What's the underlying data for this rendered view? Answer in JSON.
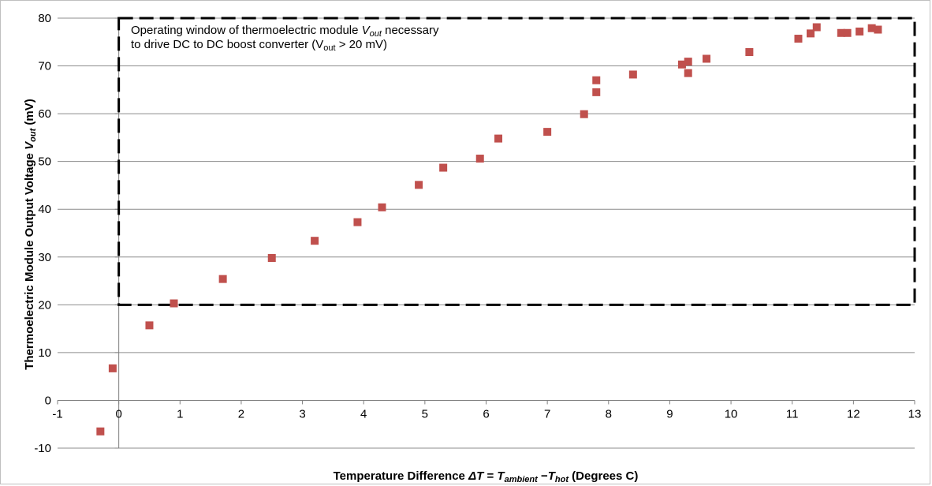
{
  "chart_data": {
    "type": "scatter",
    "title": "",
    "xlabel": "Temperature Difference ΔT = T_ambient − T_hot (Degrees C)",
    "xlabel_parts": {
      "prefix": "Temperature Difference ",
      "delta_t": "ΔT",
      "equals": " = ",
      "t1": "T",
      "sub1": "ambient",
      "minus": " −",
      "t2": "T",
      "sub2": "hot",
      "suffix": " (Degrees C)"
    },
    "ylabel": "Thermoelectric Module Output Voltage V_out (mV)",
    "ylabel_parts": {
      "prefix": "Thermoelectric Module Output Voltage ",
      "v": "V",
      "sub": "out",
      "suffix": " (mV)"
    },
    "xlim": [
      -1,
      13
    ],
    "ylim": [
      -10,
      80
    ],
    "x_ticks": [
      "-1",
      "0",
      "1",
      "2",
      "3",
      "4",
      "5",
      "6",
      "7",
      "8",
      "9",
      "10",
      "11",
      "12",
      "13"
    ],
    "y_ticks": [
      "-10",
      "0",
      "10",
      "20",
      "30",
      "40",
      "50",
      "60",
      "70",
      "80"
    ],
    "grid": "horizontal",
    "marker_color": "#c0504d",
    "points": [
      {
        "x": -0.3,
        "y": -6.5
      },
      {
        "x": -0.1,
        "y": 6.7
      },
      {
        "x": 0.5,
        "y": 15.7
      },
      {
        "x": 0.9,
        "y": 20.3
      },
      {
        "x": 1.7,
        "y": 25.4
      },
      {
        "x": 2.5,
        "y": 29.8
      },
      {
        "x": 3.2,
        "y": 33.4
      },
      {
        "x": 3.9,
        "y": 37.3
      },
      {
        "x": 4.3,
        "y": 40.4
      },
      {
        "x": 4.9,
        "y": 45.1
      },
      {
        "x": 5.3,
        "y": 48.7
      },
      {
        "x": 5.9,
        "y": 50.6
      },
      {
        "x": 6.2,
        "y": 54.8
      },
      {
        "x": 7.0,
        "y": 56.2
      },
      {
        "x": 7.6,
        "y": 59.9
      },
      {
        "x": 7.8,
        "y": 64.5
      },
      {
        "x": 7.8,
        "y": 67.0
      },
      {
        "x": 8.4,
        "y": 68.2
      },
      {
        "x": 9.2,
        "y": 70.3
      },
      {
        "x": 9.3,
        "y": 70.9
      },
      {
        "x": 9.3,
        "y": 68.5
      },
      {
        "x": 9.6,
        "y": 71.5
      },
      {
        "x": 10.3,
        "y": 72.9
      },
      {
        "x": 11.1,
        "y": 75.7
      },
      {
        "x": 11.3,
        "y": 76.8
      },
      {
        "x": 11.4,
        "y": 78.1
      },
      {
        "x": 11.8,
        "y": 76.9
      },
      {
        "x": 11.9,
        "y": 76.9
      },
      {
        "x": 12.1,
        "y": 77.2
      },
      {
        "x": 12.3,
        "y": 77.9
      },
      {
        "x": 12.4,
        "y": 77.6
      }
    ],
    "operating_window": {
      "x_range": [
        0,
        13
      ],
      "y_range": [
        20,
        80
      ],
      "line_color": "#000000",
      "line1_prefix": "Operating window of thermoelectric module ",
      "line1_v": "V",
      "line1_sub": "out",
      "line1_suffix": " necessary",
      "line2_prefix": "to drive DC to DC boost converter (V",
      "line2_sub": "out",
      "line2_suffix": " > 20 mV)"
    }
  }
}
